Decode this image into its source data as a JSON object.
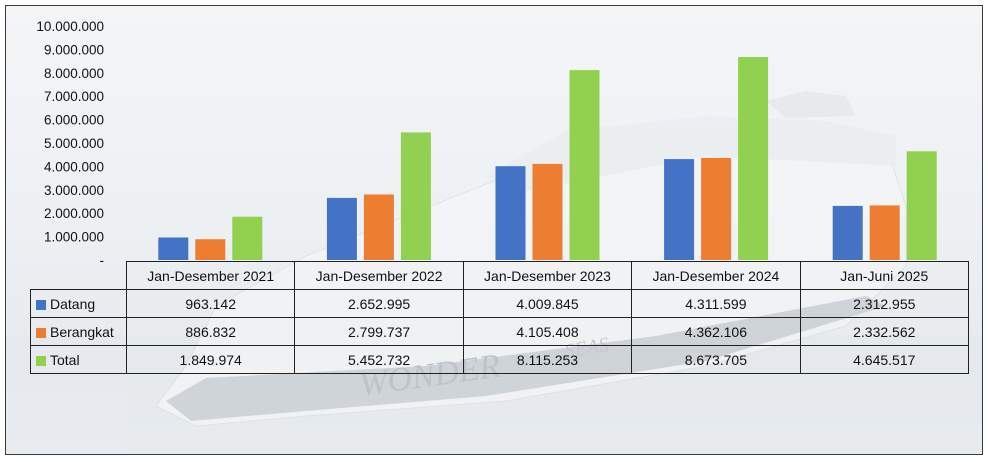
{
  "chart_data": {
    "type": "bar",
    "categories": [
      "Jan-Desember 2021",
      "Jan-Desember 2022",
      "Jan-Desember 2023",
      "Jan-Desember 2024",
      "Jan-Juni 2025"
    ],
    "series": [
      {
        "name": "Datang",
        "color": "#4472c4",
        "values": [
          963142,
          2652995,
          4009845,
          4311599,
          2312955
        ],
        "labels": [
          "963.142",
          "2.652.995",
          "4.009.845",
          "4.311.599",
          "2.312.955"
        ]
      },
      {
        "name": "Berangkat",
        "color": "#ed7d31",
        "values": [
          886832,
          2799737,
          4105408,
          4362106,
          2332562
        ],
        "labels": [
          "886.832",
          "2.799.737",
          "4.105.408",
          "4.362.106",
          "2.332.562"
        ]
      },
      {
        "name": "Total",
        "color": "#92d050",
        "values": [
          1849974,
          5452732,
          8115253,
          8673705,
          4645517
        ],
        "labels": [
          "1.849.974",
          "5.452.732",
          "8.115.253",
          "8.673.705",
          "4.645.517"
        ]
      }
    ],
    "yticks": [
      {
        "value": 0,
        "label": "-"
      },
      {
        "value": 1000000,
        "label": "1.000.000"
      },
      {
        "value": 2000000,
        "label": "2.000.000"
      },
      {
        "value": 3000000,
        "label": "3.000.000"
      },
      {
        "value": 4000000,
        "label": "4.000.000"
      },
      {
        "value": 5000000,
        "label": "5.000.000"
      },
      {
        "value": 6000000,
        "label": "6.000.000"
      },
      {
        "value": 7000000,
        "label": "7.000.000"
      },
      {
        "value": 8000000,
        "label": "8.000.000"
      },
      {
        "value": 9000000,
        "label": "9.000.000"
      },
      {
        "value": 10000000,
        "label": "10.000.000"
      }
    ],
    "ylim": [
      0,
      10000000
    ],
    "grid": false,
    "legend": "data-table",
    "title": "",
    "xlabel": "",
    "ylabel": ""
  },
  "background": {
    "ship_text": "WONDER",
    "ship_text_2": "SEAS"
  }
}
